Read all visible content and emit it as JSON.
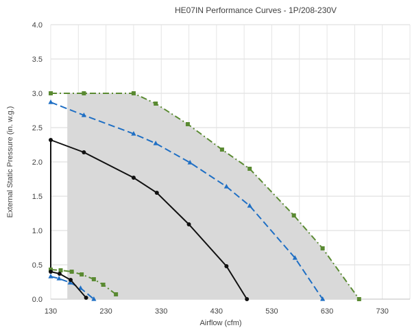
{
  "chart_data": {
    "type": "line",
    "title": "HE07IN Performance Curves - 1P/208-230V",
    "xlabel": "Airflow (cfm)",
    "ylabel": "External Static Pressure (in. w.g.)",
    "xlim": [
      130,
      780
    ],
    "ylim": [
      0,
      4.0
    ],
    "x_ticks": [
      130,
      230,
      330,
      430,
      530,
      630,
      730
    ],
    "y_ticks": [
      0.0,
      0.5,
      1.0,
      1.5,
      2.0,
      2.5,
      3.0,
      3.5,
      4.0
    ],
    "x_tick_labels": [
      "130",
      "230",
      "330",
      "430",
      "530",
      "630",
      "730"
    ],
    "y_tick_labels": [
      "0.0",
      "0.5",
      "1.0",
      "1.5",
      "2.0",
      "2.5",
      "3.0",
      "3.5",
      "4.0"
    ],
    "grid": "vertical-and-horizontal",
    "operating_region_color": "#d9d9d9",
    "operating_region": {
      "x": [
        160,
        160,
        280,
        320,
        378,
        440,
        490,
        570,
        622,
        688,
        160
      ],
      "y": [
        0.0,
        3.0,
        3.0,
        2.85,
        2.55,
        2.18,
        1.9,
        1.22,
        0.74,
        0.0,
        0.0
      ]
    },
    "series": [
      {
        "color": "#5a8a32",
        "marker": "square",
        "dash": "dash-dot",
        "x": [
          130,
          190,
          280,
          320,
          378,
          440,
          490,
          570,
          622,
          688
        ],
        "y": [
          3.0,
          3.0,
          3.0,
          2.85,
          2.55,
          2.18,
          1.9,
          1.22,
          0.74,
          0.0
        ]
      },
      {
        "color": "#1f6fc4",
        "marker": "triangle",
        "dash": "dash",
        "x": [
          130,
          190,
          280,
          320,
          382,
          448,
          490,
          572,
          622
        ],
        "y": [
          2.87,
          2.68,
          2.41,
          2.27,
          1.99,
          1.64,
          1.36,
          0.6,
          0.0
        ]
      },
      {
        "color": "#111111",
        "marker": "circle",
        "dash": "solid",
        "x": [
          130,
          190,
          280,
          322,
          380,
          448,
          485
        ],
        "y": [
          2.32,
          2.14,
          1.77,
          1.55,
          1.09,
          0.48,
          0.0
        ]
      },
      {
        "color": "#5a8a32",
        "marker": "square",
        "dash": "dash-dot",
        "x": [
          130,
          148,
          168,
          186,
          208,
          225,
          248
        ],
        "y": [
          0.43,
          0.42,
          0.4,
          0.36,
          0.29,
          0.21,
          0.07
        ]
      },
      {
        "color": "#1f6fc4",
        "marker": "triangle",
        "dash": "dash",
        "x": [
          130,
          145,
          165,
          184,
          208
        ],
        "y": [
          0.33,
          0.3,
          0.24,
          0.16,
          0.0
        ]
      },
      {
        "color": "#111111",
        "marker": "circle",
        "dash": "solid",
        "x": [
          130,
          146,
          166,
          194
        ],
        "y": [
          0.4,
          0.37,
          0.28,
          0.02
        ]
      }
    ],
    "connector": {
      "color": "#111111",
      "x": [
        130,
        130
      ],
      "y": [
        0.4,
        2.32
      ]
    }
  }
}
